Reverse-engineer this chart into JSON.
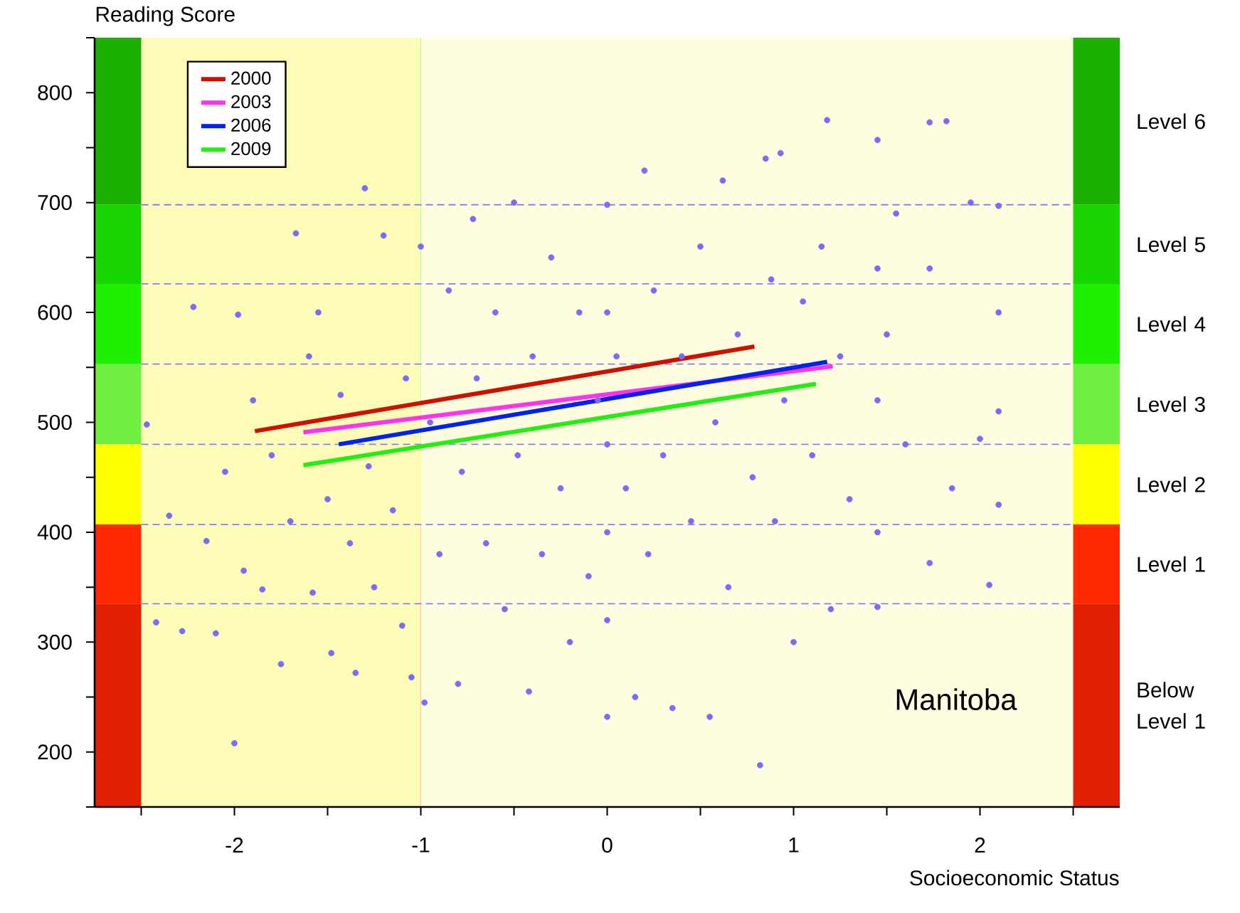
{
  "chart_data": {
    "type": "scatter",
    "ylabel": "Reading Score",
    "xlabel": "Socioeconomic Status",
    "xlim": [
      -2.75,
      2.75
    ],
    "ylim": [
      150,
      850
    ],
    "xticks": [
      {
        "value": -2.5,
        "label": null
      },
      -2,
      {
        "value": -1.5,
        "label": null
      },
      -1,
      {
        "value": -0.5,
        "label": null
      },
      0,
      {
        "value": 0.5,
        "label": null
      },
      1,
      {
        "value": 1.5,
        "label": null
      },
      2,
      {
        "value": 2.5,
        "label": null
      }
    ],
    "yticks": [
      {
        "value": 150,
        "label": null
      },
      200,
      {
        "value": 250,
        "label": null
      },
      300,
      {
        "value": 350,
        "label": null
      },
      400,
      {
        "value": 450,
        "label": null
      },
      500,
      {
        "value": 550,
        "label": null
      },
      600,
      {
        "value": 650,
        "label": null
      },
      700,
      {
        "value": 750,
        "label": null
      },
      800,
      {
        "value": 850,
        "label": null
      }
    ],
    "legend": "top left",
    "series": [
      {
        "type": "scatter",
        "color": "#7b6cf6",
        "marker": "circle",
        "x": [
          -2.47,
          -2.42,
          -2.35,
          -2.28,
          -2.22,
          -2.15,
          -2.1,
          -2.05,
          -2.0,
          -1.98,
          -1.95,
          -1.9,
          -1.85,
          -1.8,
          -1.75,
          -1.7,
          -1.67,
          -1.6,
          -1.58,
          -1.55,
          -1.5,
          -1.48,
          -1.43,
          -1.38,
          -1.35,
          -1.3,
          -1.28,
          -1.25,
          -1.2,
          -1.15,
          -1.1,
          -1.08,
          -1.05,
          -1.0,
          -0.98,
          -0.95,
          -0.9,
          -0.85,
          -0.8,
          -0.78,
          -0.72,
          -0.7,
          -0.65,
          -0.6,
          -0.55,
          -0.5,
          -0.48,
          -0.42,
          -0.4,
          -0.35,
          -0.3,
          -0.25,
          -0.2,
          -0.15,
          -0.1,
          -0.05,
          0.0,
          0.0,
          0.0,
          0.0,
          0.0,
          0.0,
          0.05,
          0.1,
          0.15,
          0.2,
          0.22,
          0.25,
          0.3,
          0.35,
          0.4,
          0.45,
          0.5,
          0.55,
          0.58,
          0.62,
          0.65,
          0.7,
          0.78,
          0.82,
          0.85,
          0.88,
          0.9,
          0.93,
          0.95,
          1.0,
          1.05,
          1.1,
          1.15,
          1.18,
          1.2,
          1.25,
          1.3,
          1.45,
          1.45,
          1.45,
          1.45,
          1.45,
          1.5,
          1.55,
          1.6,
          1.73,
          1.73,
          1.73,
          1.82,
          1.85,
          1.95,
          2.0,
          2.05,
          2.1,
          2.1,
          2.1,
          2.1
        ],
        "values": [
          498,
          318,
          415,
          310,
          605,
          392,
          308,
          455,
          208,
          598,
          365,
          520,
          348,
          470,
          280,
          410,
          672,
          560,
          345,
          600,
          430,
          290,
          525,
          390,
          272,
          713,
          460,
          350,
          670,
          420,
          315,
          540,
          268,
          660,
          245,
          500,
          380,
          620,
          262,
          455,
          685,
          540,
          390,
          600,
          330,
          700,
          470,
          255,
          560,
          380,
          650,
          440,
          300,
          600,
          360,
          520,
          698,
          600,
          480,
          400,
          320,
          232,
          560,
          440,
          250,
          729,
          380,
          620,
          470,
          240,
          560,
          410,
          660,
          232,
          500,
          720,
          350,
          580,
          450,
          188,
          740,
          630,
          410,
          745,
          520,
          300,
          610,
          470,
          660,
          775,
          330,
          560,
          430,
          757,
          640,
          520,
          400,
          332,
          580,
          690,
          480,
          773,
          640,
          372,
          774,
          440,
          700,
          485,
          352,
          697,
          600,
          510,
          425
        ]
      },
      {
        "type": "line",
        "name": "2000",
        "color": "#cc1100",
        "line_style": "solid",
        "x": [
          -1.89,
          0.79
        ],
        "values": [
          492,
          569
        ]
      },
      {
        "type": "line",
        "name": "2003",
        "color": "#ff33ee",
        "line_style": "solid",
        "x": [
          -1.63,
          1.21
        ],
        "values": [
          491,
          551
        ]
      },
      {
        "type": "line",
        "name": "2006",
        "color": "#0022ee",
        "line_style": "solid",
        "x": [
          -1.44,
          1.18
        ],
        "values": [
          480,
          555
        ]
      },
      {
        "type": "line",
        "name": "2009",
        "color": "#22ee11",
        "line_style": "solid",
        "x": [
          -1.63,
          1.12
        ],
        "values": [
          461,
          535
        ]
      }
    ],
    "ref_lines": [
      {
        "axis": "y",
        "value": 335,
        "color": "#8a80f0",
        "line_style": "dashed"
      },
      {
        "axis": "y",
        "value": 407,
        "color": "#8a80f0",
        "line_style": "dashed"
      },
      {
        "axis": "y",
        "value": 480,
        "color": "#8a80f0",
        "line_style": "dashed"
      },
      {
        "axis": "y",
        "value": 553,
        "color": "#8a80f0",
        "line_style": "dashed"
      },
      {
        "axis": "y",
        "value": 626,
        "color": "#8a80f0",
        "line_style": "dashed"
      },
      {
        "axis": "y",
        "value": 698,
        "color": "#8a80f0",
        "line_style": "dashed"
      }
    ],
    "bands": [
      {
        "axis": "x",
        "from": -2.5,
        "to": -1,
        "color": "#fdfbb8"
      },
      {
        "axis": "x",
        "from": -1,
        "to": 2.5,
        "color": "#fefde0"
      },
      {
        "axis": "y",
        "from": 698,
        "to": 850,
        "label": "Level 6",
        "color": "#1cb000"
      },
      {
        "axis": "y",
        "from": 626,
        "to": 698,
        "label": "Level 5",
        "color": "#1ad600"
      },
      {
        "axis": "y",
        "from": 553,
        "to": 626,
        "label": "Level 4",
        "color": "#1ef000"
      },
      {
        "axis": "y",
        "from": 480,
        "to": 553,
        "label": "Level 3",
        "color": "#70f040"
      },
      {
        "axis": "y",
        "from": 407,
        "to": 480,
        "label": "Level 2",
        "color": "#ffff00"
      },
      {
        "axis": "y",
        "from": 335,
        "to": 407,
        "label": "Level 1",
        "color": "#ff2800"
      },
      {
        "axis": "y",
        "from": 150,
        "to": 335,
        "label": "Below Level 1",
        "color": "#e02000"
      }
    ],
    "annotations": [
      "Manitoba"
    ]
  }
}
